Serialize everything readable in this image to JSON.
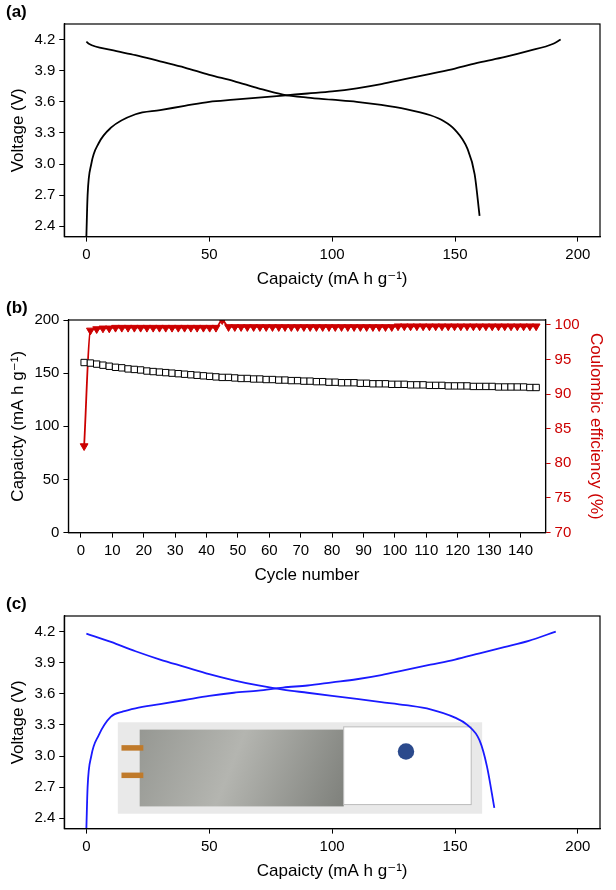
{
  "chart_data": [
    {
      "type": "line",
      "panel": "(a)",
      "x_label": "Capaicty (mA h g⁻¹)",
      "y_label": "Voltage (V)",
      "xlim": [
        -9,
        209
      ],
      "xticks": [
        0,
        50,
        100,
        150,
        200
      ],
      "ylim": [
        2.3,
        4.35
      ],
      "yticks": [
        2.4,
        2.7,
        {
          "value": 3,
          "label": "3.0"
        },
        3.3,
        3.6,
        3.9,
        4.2
      ],
      "grid": false,
      "series": [
        {
          "color": "#000000",
          "marker": "none",
          "line_style": "solid",
          "x": [
            0,
            0.5,
            2,
            5,
            10,
            20,
            30,
            40,
            50,
            60,
            70,
            80,
            90,
            100,
            110,
            120,
            130,
            140,
            150,
            160,
            170,
            180,
            190,
            193
          ],
          "values": [
            2.3,
            2.7,
            3.0,
            3.2,
            3.35,
            3.48,
            3.52,
            3.56,
            3.6,
            3.62,
            3.64,
            3.66,
            3.68,
            3.7,
            3.73,
            3.77,
            3.82,
            3.87,
            3.92,
            3.98,
            4.03,
            4.09,
            4.16,
            4.2
          ]
        },
        {
          "color": "#000000",
          "marker": "none",
          "line_style": "solid",
          "x": [
            0,
            1,
            10,
            20,
            30,
            40,
            50,
            60,
            70,
            80,
            90,
            100,
            110,
            120,
            130,
            140,
            145,
            150,
            155,
            158,
            160
          ],
          "values": [
            4.18,
            4.16,
            4.1,
            4.05,
            3.99,
            3.93,
            3.86,
            3.8,
            3.73,
            3.67,
            3.64,
            3.62,
            3.6,
            3.57,
            3.53,
            3.47,
            3.42,
            3.33,
            3.15,
            2.9,
            2.5
          ]
        }
      ]
    },
    {
      "type": "line",
      "panel": "(b)",
      "x_label": "Cycle number",
      "y_label": "Capaicty (mA h g⁻¹)",
      "y2_label": "Coulombic efficiency (%)",
      "xlim": [
        -4,
        148
      ],
      "xticks": [
        0,
        10,
        20,
        30,
        40,
        50,
        60,
        70,
        80,
        90,
        100,
        110,
        120,
        130,
        140
      ],
      "ylim": [
        0,
        200
      ],
      "yticks": [
        0,
        50,
        100,
        150,
        200
      ],
      "y2lim": [
        70,
        100.7
      ],
      "y2ticks": [
        70,
        75,
        80,
        85,
        90,
        95,
        100
      ],
      "grid": false,
      "x": [
        1,
        3,
        5,
        7,
        9,
        11,
        13,
        15,
        17,
        19,
        21,
        23,
        25,
        27,
        29,
        31,
        33,
        35,
        37,
        39,
        41,
        43,
        45,
        47,
        49,
        51,
        53,
        55,
        57,
        59,
        61,
        63,
        65,
        67,
        69,
        71,
        73,
        75,
        77,
        79,
        81,
        83,
        85,
        87,
        89,
        91,
        93,
        95,
        97,
        99,
        101,
        103,
        105,
        107,
        109,
        111,
        113,
        115,
        117,
        119,
        121,
        123,
        125,
        127,
        129,
        131,
        133,
        135,
        137,
        139,
        141,
        143,
        145
      ],
      "series": [
        {
          "color": "#000000",
          "marker": "open_square",
          "line_style": "none",
          "values": [
            160,
            159.5,
            158.5,
            157.5,
            156.5,
            155.5,
            155,
            154,
            153.5,
            153,
            152,
            151.5,
            151,
            150.5,
            150,
            149.5,
            149,
            148.5,
            148,
            147.5,
            147,
            146.5,
            146,
            146,
            145.5,
            145,
            145,
            144.5,
            144.5,
            144,
            144,
            143.5,
            143.5,
            143,
            143,
            142.5,
            142.5,
            142,
            142,
            141.5,
            141.5,
            141,
            141,
            141,
            140.5,
            140.5,
            140,
            140,
            140,
            139.5,
            139.5,
            139.5,
            139,
            139,
            139,
            138.5,
            138.5,
            138.5,
            138,
            138,
            138,
            138,
            137.5,
            137.5,
            137.5,
            137.5,
            137,
            137,
            137,
            137,
            137,
            136.5,
            136.5
          ]
        },
        {
          "color": "#cc0000",
          "marker": "triangle_down",
          "line_style": "solid",
          "axis": "y2",
          "values": [
            82.5,
            99.2,
            99.4,
            99.5,
            99.5,
            99.6,
            99.6,
            99.6,
            99.6,
            99.6,
            99.6,
            99.6,
            99.6,
            99.6,
            99.6,
            99.6,
            99.6,
            99.6,
            99.6,
            99.6,
            99.6,
            99.6,
            100.7,
            99.7,
            99.7,
            99.7,
            99.7,
            99.7,
            99.7,
            99.7,
            99.7,
            99.7,
            99.7,
            99.7,
            99.7,
            99.7,
            99.7,
            99.7,
            99.7,
            99.7,
            99.7,
            99.7,
            99.7,
            99.7,
            99.7,
            99.7,
            99.7,
            99.7,
            99.7,
            99.7,
            99.8,
            99.8,
            99.8,
            99.8,
            99.8,
            99.8,
            99.8,
            99.8,
            99.8,
            99.8,
            99.8,
            99.8,
            99.8,
            99.8,
            99.8,
            99.8,
            99.8,
            99.8,
            99.8,
            99.8,
            99.8,
            99.8,
            99.8
          ]
        }
      ]
    },
    {
      "type": "line",
      "panel": "(c)",
      "x_label": "Capaicty (mA h g⁻¹)",
      "y_label": "Voltage (V)",
      "xlim": [
        -9,
        209
      ],
      "xticks": [
        0,
        50,
        100,
        150,
        200
      ],
      "ylim": [
        2.3,
        4.35
      ],
      "yticks": [
        2.4,
        2.7,
        {
          "value": 3,
          "label": "3.0"
        },
        3.3,
        3.6,
        3.9,
        4.2
      ],
      "grid": false,
      "series": [
        {
          "color": "#1a1aff",
          "marker": "none",
          "line_style": "solid",
          "x": [
            0,
            0.5,
            2,
            5,
            10,
            15,
            20,
            30,
            40,
            50,
            60,
            70,
            80,
            90,
            100,
            110,
            120,
            130,
            140,
            150,
            160,
            170,
            180,
            191
          ],
          "values": [
            2.3,
            2.7,
            3.0,
            3.2,
            3.38,
            3.43,
            3.46,
            3.5,
            3.54,
            3.58,
            3.61,
            3.63,
            3.66,
            3.68,
            3.71,
            3.74,
            3.78,
            3.83,
            3.88,
            3.93,
            3.99,
            4.05,
            4.11,
            4.2
          ]
        },
        {
          "color": "#1a1aff",
          "marker": "none",
          "line_style": "solid",
          "x": [
            0,
            10,
            20,
            30,
            40,
            50,
            60,
            70,
            80,
            90,
            100,
            110,
            120,
            130,
            140,
            150,
            155,
            160,
            163,
            166
          ],
          "values": [
            4.18,
            4.1,
            4.01,
            3.93,
            3.86,
            3.79,
            3.73,
            3.68,
            3.64,
            3.61,
            3.58,
            3.55,
            3.52,
            3.49,
            3.45,
            3.37,
            3.3,
            3.15,
            2.9,
            2.5
          ]
        }
      ]
    }
  ]
}
